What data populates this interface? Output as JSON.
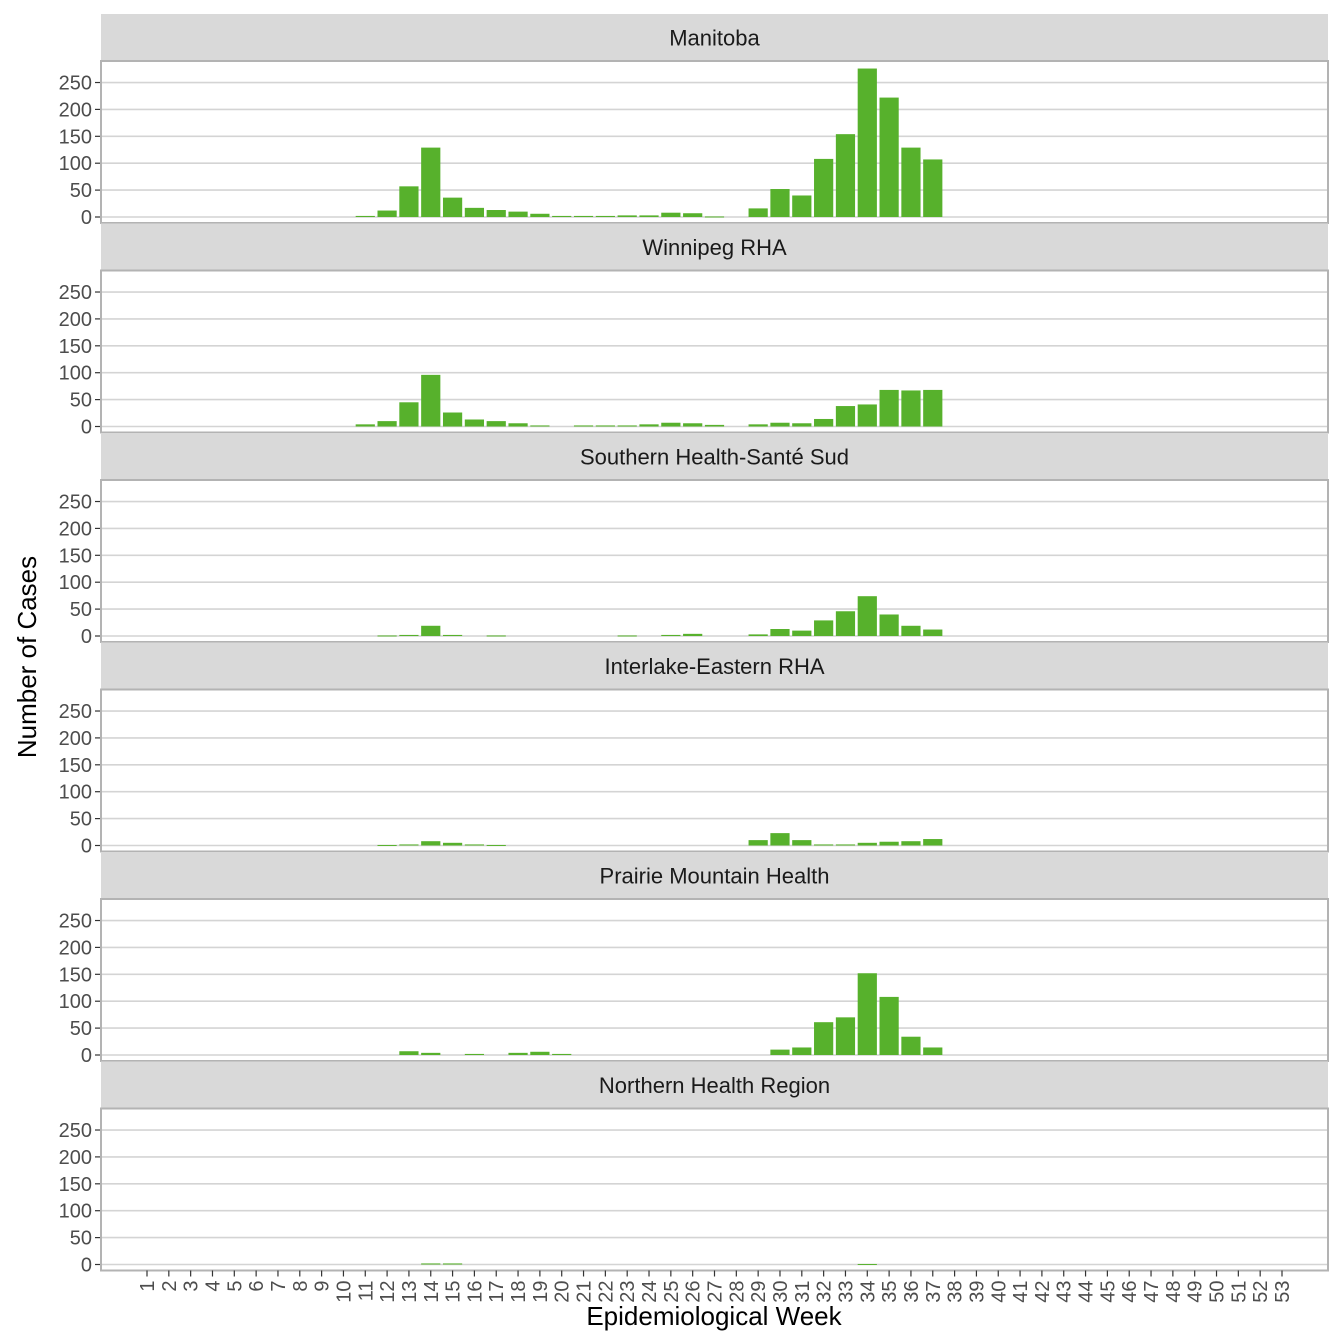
{
  "chart_data": {
    "type": "bar",
    "xlabel": "Epidemiological Week",
    "ylabel": "Number of Cases",
    "ylim": [
      0,
      290
    ],
    "y_ticks": [
      0,
      50,
      100,
      150,
      200,
      250
    ],
    "x_tick_labels": [
      "1",
      "2",
      "3",
      "4",
      "5",
      "6",
      "7",
      "8",
      "9",
      "10",
      "11",
      "12",
      "13",
      "14",
      "15",
      "16",
      "17",
      "18",
      "19",
      "20",
      "21",
      "22",
      "23",
      "24",
      "25",
      "26",
      "27",
      "28",
      "29",
      "30",
      "31",
      "32",
      "33",
      "34",
      "35",
      "36",
      "37",
      "38",
      "39",
      "40",
      "41",
      "42",
      "43",
      "44",
      "45",
      "46",
      "47",
      "48",
      "49",
      "50",
      "51",
      "52",
      "53"
    ],
    "bar_color": "#57b12c",
    "panels": [
      {
        "title": "Manitoba",
        "weeks": [
          11,
          12,
          13,
          14,
          15,
          16,
          17,
          18,
          19,
          20,
          21,
          22,
          23,
          24,
          25,
          26,
          27,
          28,
          29,
          30,
          31,
          32,
          33,
          34,
          35,
          36,
          37
        ],
        "values": [
          2,
          12,
          57,
          129,
          36,
          17,
          13,
          10,
          6,
          2,
          2,
          2,
          3,
          3,
          8,
          7,
          1,
          0,
          16,
          52,
          40,
          108,
          154,
          276,
          222,
          129,
          107
        ]
      },
      {
        "title": "Winnipeg RHA",
        "weeks": [
          11,
          12,
          13,
          14,
          15,
          16,
          17,
          18,
          19,
          20,
          21,
          22,
          23,
          24,
          25,
          26,
          27,
          28,
          29,
          30,
          31,
          32,
          33,
          34,
          35,
          36,
          37
        ],
        "values": [
          4,
          10,
          45,
          96,
          26,
          13,
          10,
          6,
          2,
          0,
          2,
          2,
          2,
          4,
          7,
          6,
          3,
          0,
          4,
          7,
          6,
          14,
          38,
          41,
          68,
          67,
          68
        ]
      },
      {
        "title": "Southern Health-Santé Sud",
        "weeks": [
          11,
          12,
          13,
          14,
          15,
          16,
          17,
          18,
          19,
          20,
          21,
          22,
          23,
          24,
          25,
          26,
          27,
          28,
          29,
          30,
          31,
          32,
          33,
          34,
          35,
          36,
          37
        ],
        "values": [
          0,
          1,
          2,
          19,
          2,
          0,
          1,
          0,
          0,
          0,
          0,
          0,
          1,
          0,
          2,
          4,
          0,
          0,
          3,
          13,
          10,
          29,
          46,
          74,
          40,
          19,
          12
        ]
      },
      {
        "title": "Interlake-Eastern RHA",
        "weeks": [
          11,
          12,
          13,
          14,
          15,
          16,
          17,
          18,
          19,
          20,
          21,
          22,
          23,
          24,
          25,
          26,
          27,
          28,
          29,
          30,
          31,
          32,
          33,
          34,
          35,
          36,
          37
        ],
        "values": [
          0,
          1,
          2,
          8,
          5,
          2,
          1,
          0,
          0,
          0,
          0,
          0,
          0,
          0,
          0,
          0,
          0,
          0,
          10,
          23,
          10,
          2,
          2,
          5,
          7,
          8,
          12
        ]
      },
      {
        "title": "Prairie Mountain Health",
        "weeks": [
          11,
          12,
          13,
          14,
          15,
          16,
          17,
          18,
          19,
          20,
          21,
          22,
          23,
          24,
          25,
          26,
          27,
          28,
          29,
          30,
          31,
          32,
          33,
          34,
          35,
          36,
          37
        ],
        "values": [
          0,
          0,
          7,
          4,
          0,
          2,
          0,
          4,
          6,
          2,
          0,
          0,
          0,
          0,
          0,
          0,
          0,
          0,
          0,
          10,
          14,
          61,
          70,
          152,
          108,
          34,
          14
        ]
      },
      {
        "title": "Northern Health Region",
        "weeks": [
          11,
          12,
          13,
          14,
          15,
          16,
          17,
          18,
          19,
          20,
          21,
          22,
          23,
          24,
          25,
          26,
          27,
          28,
          29,
          30,
          31,
          32,
          33,
          34,
          35,
          36,
          37
        ],
        "values": [
          0,
          0,
          0,
          2,
          2,
          0,
          0,
          0,
          0,
          0,
          0,
          0,
          0,
          0,
          0,
          0,
          0,
          0,
          0,
          0,
          0,
          0,
          0,
          1,
          0,
          0,
          0
        ]
      }
    ]
  }
}
